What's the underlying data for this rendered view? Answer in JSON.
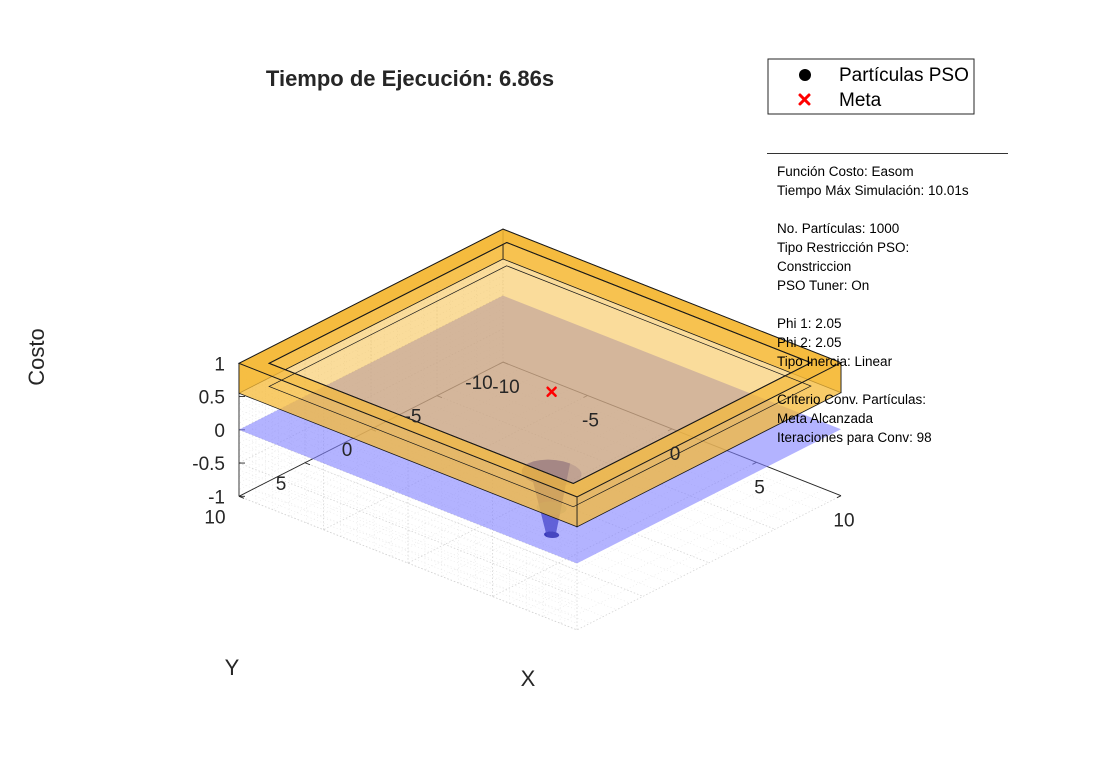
{
  "chart_data": {
    "type": "surface3d",
    "title": "Tiempo de Ejecución: 6.86s",
    "xlabel": "X",
    "ylabel": "Y",
    "zlabel": "Costo",
    "xlim": [
      -10,
      10
    ],
    "ylim": [
      -10,
      10
    ],
    "zlim": [
      -1,
      1
    ],
    "x_ticks": [
      -10,
      -5,
      0,
      5,
      10
    ],
    "y_ticks": [
      -10,
      -5,
      0,
      5,
      10
    ],
    "z_ticks": [
      -1,
      -0.5,
      0,
      0.5,
      1
    ],
    "x_tick_labels": [
      "-10",
      "-5",
      "0",
      "5",
      "10"
    ],
    "y_tick_labels": [
      "-10",
      "-5",
      "0",
      "5",
      "10"
    ],
    "z_tick_labels": [
      "-1",
      "-0.5",
      "0",
      "0.5",
      "1"
    ],
    "grid": true,
    "legend_position": "outside-top-right",
    "series": [
      {
        "name": "Partículas PSO",
        "marker": "circle",
        "color": "#000000"
      },
      {
        "name": "Meta",
        "marker": "x",
        "color": "#ff0000",
        "x": 3.14,
        "y": 3.14,
        "z": 0.8
      }
    ],
    "surface_function": "Easom",
    "surface_color": "#8080ff",
    "boundary_box_color": "#f5b937"
  },
  "info": {
    "lines": [
      "Función Costo: Easom",
      "Tiempo Máx Simulación: 10.01s",
      "",
      "No. Partículas: 1000",
      "Tipo Restricción PSO:",
      "Constriccion",
      "PSO Tuner: On",
      "",
      "Phi 1: 2.05",
      "Phi 2: 2.05",
      "Tipo Inercia: Linear",
      "",
      "Criterio Conv. Partículas:",
      "Meta Alcanzada",
      "Iteraciones para Conv: 98"
    ]
  }
}
